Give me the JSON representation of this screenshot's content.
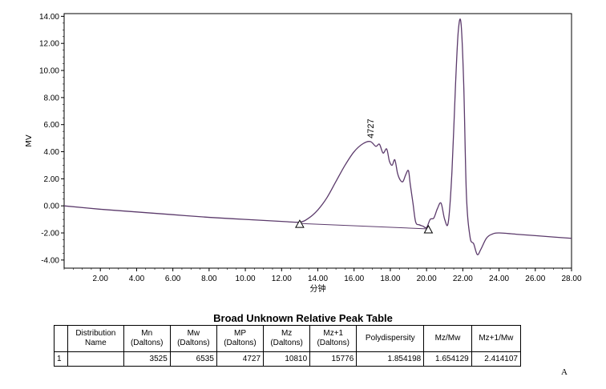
{
  "chart_data": {
    "type": "line",
    "xlabel": "分钟",
    "ylabel": "MV",
    "xlim": [
      0,
      28
    ],
    "ylim": [
      -4.6,
      14.2
    ],
    "x_ticks": [
      "2.00",
      "4.00",
      "6.00",
      "8.00",
      "10.00",
      "12.00",
      "14.00",
      "16.00",
      "18.00",
      "20.00",
      "22.00",
      "24.00",
      "26.00",
      "28.00"
    ],
    "y_ticks": [
      "-4.00",
      "-2.00",
      "0.00",
      "2.00",
      "4.00",
      "6.00",
      "8.00",
      "10.00",
      "12.00",
      "14.00"
    ],
    "grid": false,
    "series": [
      {
        "color": "#5b3a6b",
        "x": [
          0,
          2,
          4,
          6,
          8,
          10,
          12,
          13.0,
          13.5,
          14.0,
          14.5,
          15.0,
          15.5,
          16.0,
          16.5,
          16.9,
          17.2,
          17.4,
          17.6,
          17.8,
          17.95,
          18.1,
          18.25,
          18.4,
          18.55,
          18.7,
          18.85,
          19.0,
          19.1,
          19.25,
          19.4,
          19.6,
          19.8,
          20.0,
          20.2,
          20.4,
          20.6,
          20.8,
          21.0,
          21.2,
          21.4,
          21.6,
          21.75,
          21.9,
          22.05,
          22.2,
          22.4,
          22.6,
          22.8,
          23.0,
          23.3,
          23.6,
          24,
          25,
          26,
          27,
          28
        ],
        "y": [
          0.0,
          -0.25,
          -0.45,
          -0.65,
          -0.85,
          -1.0,
          -1.15,
          -1.2,
          -0.9,
          -0.3,
          0.6,
          1.8,
          3.0,
          4.0,
          4.6,
          4.75,
          4.4,
          4.55,
          3.9,
          4.2,
          3.3,
          3.0,
          3.4,
          2.4,
          1.9,
          1.8,
          2.3,
          2.6,
          1.6,
          0.2,
          -1.2,
          -1.4,
          -1.5,
          -1.6,
          -1.0,
          -0.9,
          -0.2,
          0.2,
          -1.0,
          -1.2,
          2.5,
          9.0,
          12.9,
          13.5,
          9.0,
          0.8,
          -2.3,
          -2.8,
          -3.6,
          -3.2,
          -2.4,
          -2.1,
          -2.0,
          -2.1,
          -2.2,
          -2.3,
          -2.4
        ]
      }
    ],
    "baseline": {
      "x": [
        13.0,
        20.1
      ],
      "y": [
        -1.3,
        -1.7
      ]
    },
    "markers": [
      {
        "x": 13.0,
        "y": -1.3
      },
      {
        "x": 20.1,
        "y": -1.7
      }
    ],
    "annotations": [
      {
        "text": "4727",
        "x": 16.9,
        "y": 4.75
      }
    ]
  },
  "table": {
    "title": "Broad Unknown Relative Peak Table",
    "headers": [
      "",
      [
        "Distribution",
        "Name"
      ],
      [
        "Mn",
        "(Daltons)"
      ],
      [
        "Mw",
        "(Daltons)"
      ],
      [
        "MP",
        "(Daltons)"
      ],
      [
        "Mz",
        "(Daltons)"
      ],
      [
        "Mz+1",
        "(Daltons)"
      ],
      [
        "Polydispersity"
      ],
      [
        "Mz/Mw"
      ],
      [
        "Mz+1/Mw"
      ]
    ],
    "rows": [
      [
        "1",
        "",
        "3525",
        "6535",
        "4727",
        "10810",
        "15776",
        "1.854198",
        "1.654129",
        "2.414107"
      ]
    ]
  },
  "panel_letter": "A"
}
